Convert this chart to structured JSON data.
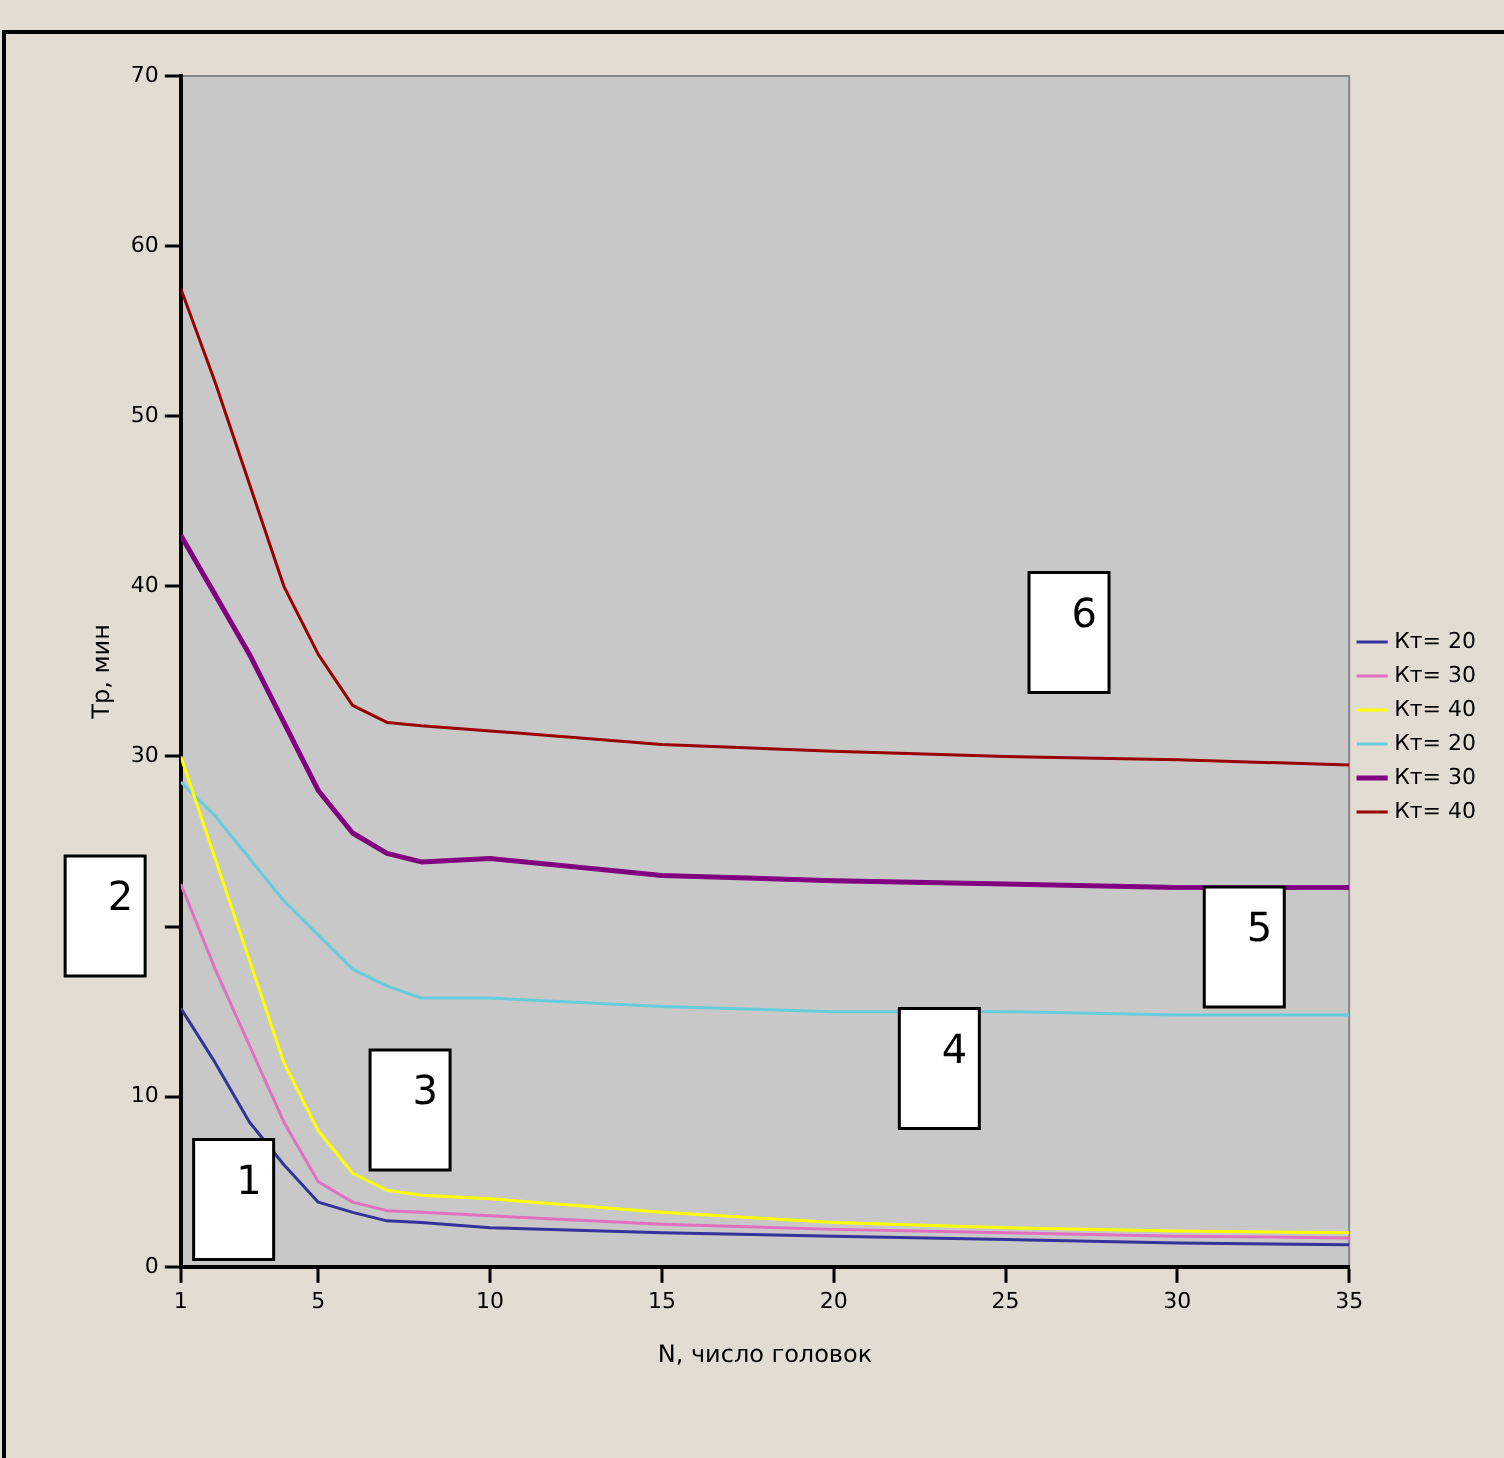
{
  "chart_data": {
    "type": "line",
    "xlabel": "N, число головок",
    "ylabel": "Тр, мин",
    "xlim": [
      1,
      35
    ],
    "xticks": [
      1,
      5,
      10,
      15,
      20,
      25,
      30,
      35
    ],
    "ylim": [
      0,
      70
    ],
    "yticks": [
      0,
      10,
      {
        "value": 20,
        "label": null
      },
      30,
      40,
      50,
      60,
      70
    ],
    "grid": false,
    "legend": "right",
    "marker": "none",
    "line_style": "solid",
    "series": [
      {
        "name": "Кт= 20",
        "color": "#333399",
        "x": [
          1,
          2,
          3,
          4,
          5,
          6,
          7,
          8,
          10,
          15,
          20,
          25,
          30,
          35
        ],
        "values": [
          15.2,
          12,
          8.5,
          6,
          3.8,
          3.2,
          2.7,
          2.6,
          2.3,
          2,
          1.8,
          1.6,
          1.4,
          1.3
        ]
      },
      {
        "name": "Кт= 30",
        "color": "#e070c0",
        "x": [
          1,
          2,
          3,
          4,
          5,
          6,
          7,
          8,
          10,
          15,
          20,
          25,
          30,
          35
        ],
        "values": [
          22.5,
          17.5,
          13,
          8.5,
          5,
          3.8,
          3.3,
          3.2,
          3,
          2.5,
          2.2,
          2,
          1.8,
          1.7
        ]
      },
      {
        "name": "Кт= 40",
        "color": "#ffff00",
        "x": [
          1,
          2,
          3,
          4,
          5,
          6,
          7,
          8,
          10,
          15,
          20,
          25,
          30,
          35
        ],
        "values": [
          30,
          24,
          18,
          12,
          8,
          5.5,
          4.5,
          4.2,
          4,
          3.2,
          2.6,
          2.3,
          2.1,
          2
        ]
      },
      {
        "name": "Кт= 20",
        "color": "#66ccdd",
        "x": [
          1,
          2,
          3,
          4,
          5,
          6,
          7,
          8,
          10,
          15,
          20,
          25,
          30,
          35
        ],
        "values": [
          28.5,
          26.5,
          24,
          21.5,
          19.5,
          17.5,
          16.5,
          15.8,
          15.8,
          15.3,
          15,
          15,
          14.8,
          14.8
        ]
      },
      {
        "name": "Кт= 30",
        "color": "#800080",
        "x": [
          1,
          2,
          3,
          4,
          5,
          6,
          7,
          8,
          10,
          15,
          20,
          25,
          30,
          35
        ],
        "values": [
          43,
          39.5,
          36,
          32,
          28,
          25.5,
          24.3,
          23.8,
          24,
          23,
          22.7,
          22.5,
          22.3,
          22.3
        ]
      },
      {
        "name": "Кт= 40",
        "color": "#990000",
        "x": [
          1,
          2,
          3,
          4,
          5,
          6,
          7,
          8,
          10,
          15,
          20,
          25,
          30,
          35
        ],
        "values": [
          57.5,
          52,
          46,
          40,
          36,
          33,
          32,
          31.8,
          31.5,
          30.7,
          30.3,
          30,
          29.8,
          29.5
        ]
      }
    ],
    "annotations": [
      "1",
      "2",
      "3",
      "4",
      "5",
      "6"
    ]
  }
}
